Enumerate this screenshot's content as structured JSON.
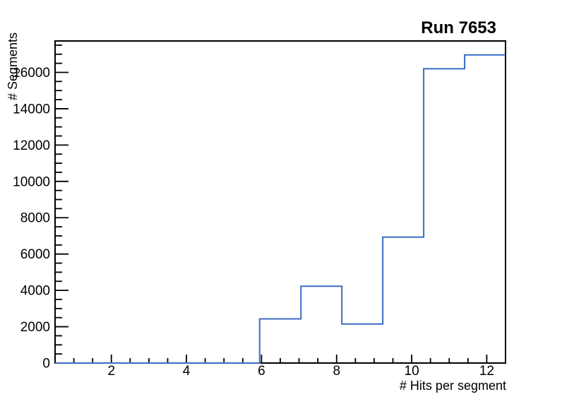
{
  "window": {
    "background": "#ffffff"
  },
  "title": {
    "text": "Run 7653"
  },
  "chart_data": {
    "type": "histogram-step",
    "title": "Run 7653",
    "xlabel": "# Hits per segment",
    "ylabel": "# Segments",
    "xlim": [
      0.5,
      12.5
    ],
    "ylim": [
      0,
      17730
    ],
    "bin_edges": [
      0.5,
      1.59,
      2.68,
      3.77,
      4.86,
      5.95,
      7.05,
      8.14,
      9.23,
      10.32,
      11.41,
      12.5
    ],
    "counts": [
      0,
      0,
      0,
      0,
      0,
      2430,
      4230,
      2150,
      6930,
      16200,
      16960
    ],
    "x_major_ticks": [
      2,
      4,
      6,
      8,
      10,
      12
    ],
    "x_minor_tick_step": 0.5,
    "y_major_ticks": [
      0,
      2000,
      4000,
      6000,
      8000,
      10000,
      12000,
      14000,
      16000
    ],
    "y_minor_tick_step": 500,
    "grid": false,
    "legend": null,
    "tick_direction": "in",
    "line_color": "#3b6bc5",
    "axis_color": "#000000",
    "label_color": "#000000",
    "background_color": "#ffffff"
  }
}
